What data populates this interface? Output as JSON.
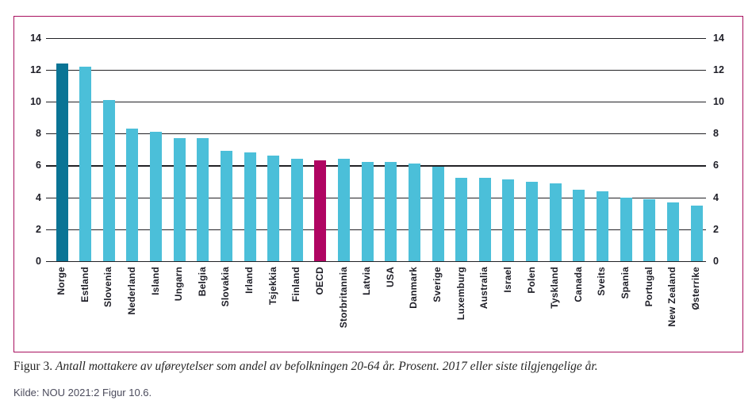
{
  "figure": {
    "caption_label": "Figur 3.",
    "caption_text": "Antall mottakere av uføreytelser som andel av befolkningen 20-64 år. Prosent. 2017 eller siste tilgjengelige år.",
    "source": "Kilde: NOU 2021:2 Figur 10.6."
  },
  "colors": {
    "frame_border": "#a8115f",
    "default_bar": "#4bbfd9",
    "norway_bar": "#0a7495",
    "oecd_bar": "#b00562",
    "gridline": "#222226",
    "label_text": "#1d1d26",
    "caption_text": "#262626",
    "source_text": "#4b4b5c"
  },
  "chart_data": {
    "type": "bar",
    "title": "",
    "xlabel": "",
    "ylabel": "",
    "categories": [
      "Norge",
      "Estland",
      "Slovenia",
      "Nederland",
      "Island",
      "Ungarn",
      "Belgia",
      "Slovakia",
      "Irland",
      "Tsjekkia",
      "Finland",
      "OECD",
      "Storbritannia",
      "Latvia",
      "USA",
      "Danmark",
      "Sverige",
      "Luxemburg",
      "Australia",
      "Israel",
      "Polen",
      "Tyskland",
      "Canada",
      "Sveits",
      "Spania",
      "Portugal",
      "New Zealand",
      "Østerrike"
    ],
    "values": [
      12.4,
      12.2,
      10.1,
      8.3,
      8.1,
      7.7,
      7.7,
      6.9,
      6.8,
      6.6,
      6.4,
      6.3,
      6.4,
      6.2,
      6.2,
      6.1,
      5.9,
      5.2,
      5.2,
      5.1,
      5.0,
      4.9,
      4.5,
      4.4,
      4.0,
      3.9,
      3.7,
      3.5
    ],
    "ylim": [
      0,
      14
    ],
    "ytick_interval": 2,
    "yticks_both_sides": true,
    "grid": "horizontal",
    "legend": "none",
    "default_bar_color": "#4bbfd9",
    "highlighted_bars": [
      {
        "category": "Norge",
        "color": "#0a7495"
      },
      {
        "category": "OECD",
        "color": "#b00562"
      }
    ]
  }
}
